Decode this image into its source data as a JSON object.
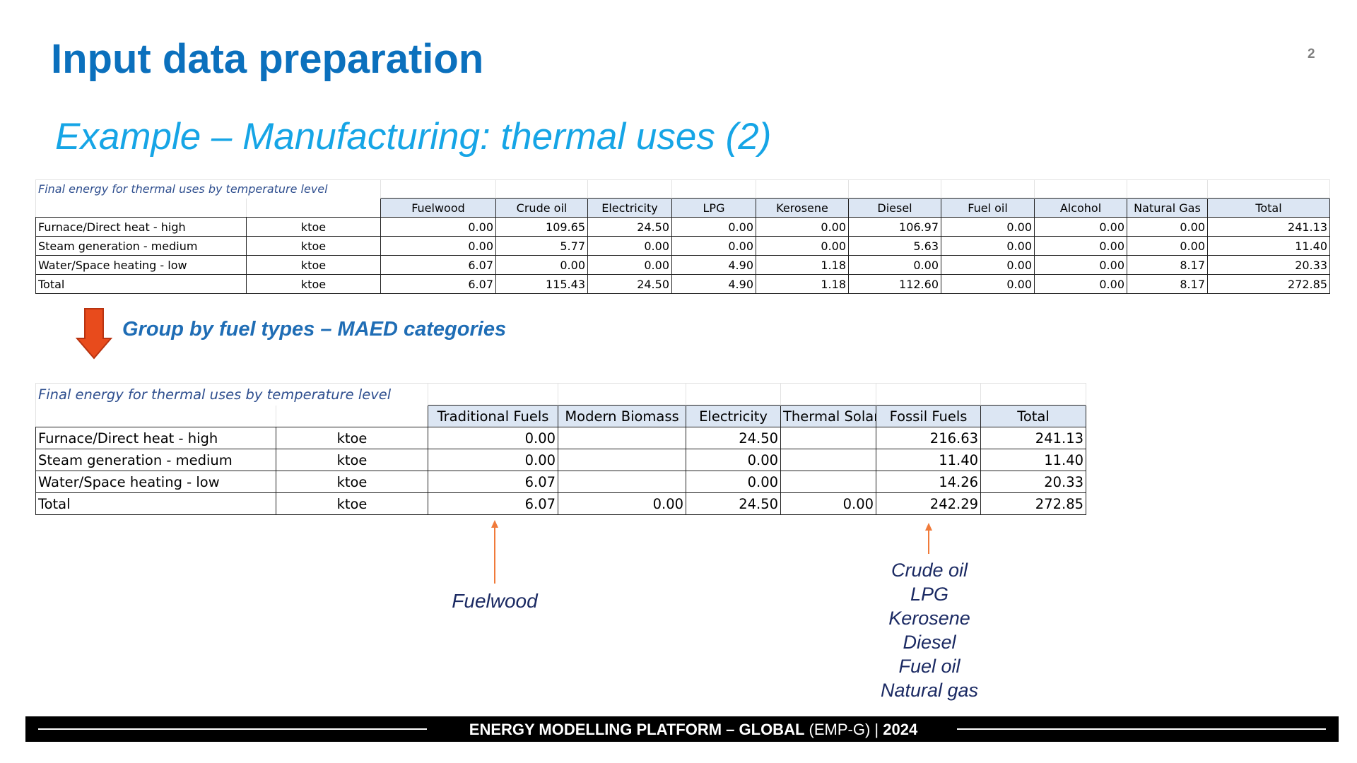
{
  "slide": {
    "title": "Input data preparation",
    "page_number": "2",
    "subtitle": "Example – Manufacturing: thermal uses (2)"
  },
  "table1": {
    "caption": "Final energy for thermal uses by temperature level",
    "headers": [
      "Fuelwood",
      "Crude oil",
      "Electricity",
      "LPG",
      "Kerosene",
      "Diesel",
      "Fuel oil",
      "Alcohol",
      "Natural Gas",
      "Total"
    ],
    "rows": [
      {
        "label": "Furnace/Direct heat - high",
        "unit": "ktoe",
        "values": [
          "0.00",
          "109.65",
          "24.50",
          "0.00",
          "0.00",
          "106.97",
          "0.00",
          "0.00",
          "0.00",
          "241.13"
        ]
      },
      {
        "label": "Steam generation - medium",
        "unit": "ktoe",
        "values": [
          "0.00",
          "5.77",
          "0.00",
          "0.00",
          "0.00",
          "5.63",
          "0.00",
          "0.00",
          "0.00",
          "11.40"
        ]
      },
      {
        "label": "Water/Space heating - low",
        "unit": "ktoe",
        "values": [
          "6.07",
          "0.00",
          "0.00",
          "4.90",
          "1.18",
          "0.00",
          "0.00",
          "0.00",
          "8.17",
          "20.33"
        ]
      },
      {
        "label": "Total",
        "unit": "ktoe",
        "values": [
          "6.07",
          "115.43",
          "24.50",
          "4.90",
          "1.18",
          "112.60",
          "0.00",
          "0.00",
          "8.17",
          "272.85"
        ]
      }
    ]
  },
  "group_label": "Group by fuel types – MAED categories",
  "table2": {
    "caption": "Final energy for thermal uses by temperature level",
    "headers": [
      "Traditional Fuels",
      "Modern Biomass",
      "Electricity",
      "Thermal Solar",
      "Fossil Fuels",
      "Total"
    ],
    "rows": [
      {
        "label": "Furnace/Direct heat - high",
        "unit": "ktoe",
        "values": [
          "0.00",
          "",
          "24.50",
          "",
          "216.63",
          "241.13"
        ]
      },
      {
        "label": "Steam generation - medium",
        "unit": "ktoe",
        "values": [
          "0.00",
          "",
          "0.00",
          "",
          "11.40",
          "11.40"
        ]
      },
      {
        "label": "Water/Space heating - low",
        "unit": "ktoe",
        "values": [
          "6.07",
          "",
          "0.00",
          "",
          "14.26",
          "20.33"
        ]
      },
      {
        "label": "Total",
        "unit": "ktoe",
        "values": [
          "6.07",
          "0.00",
          "24.50",
          "0.00",
          "242.29",
          "272.85"
        ]
      }
    ]
  },
  "annotations": {
    "traditional": "Fuelwood",
    "fossil": [
      "Crude oil",
      "LPG",
      "Kerosene",
      "Diesel",
      "Fuel oil",
      "Natural gas"
    ]
  },
  "footer": {
    "main": "ENERGY MODELLING PLATFORM – GLOBAL",
    "abbr": "(EMP-G)",
    "sep": "|",
    "year": "2024"
  },
  "colors": {
    "title": "#0b70bd",
    "subtitle": "#16a5e6",
    "header_fill": "#dce6f3",
    "arrow": "#e84b1c",
    "annotation_arrow": "#f07a3a",
    "annotation_text": "#1b2a63"
  }
}
